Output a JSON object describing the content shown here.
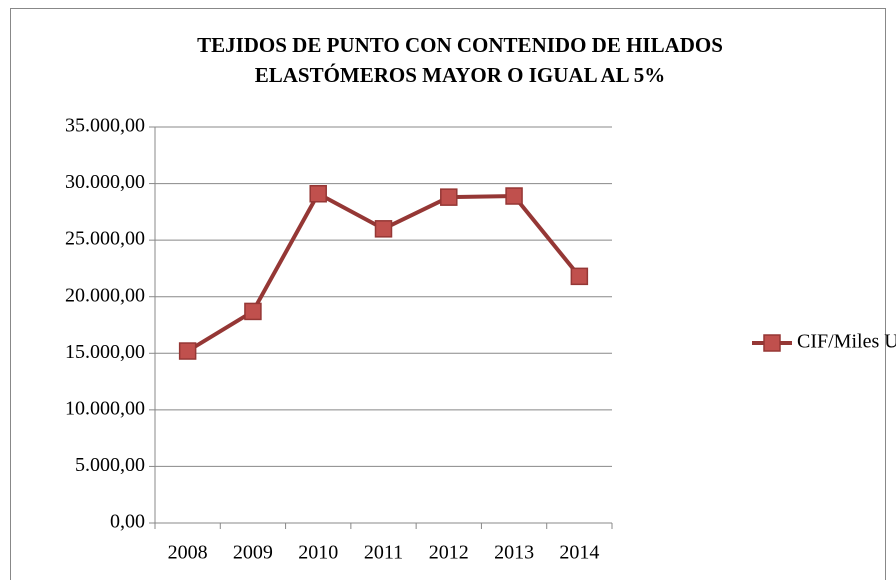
{
  "chart_data": {
    "type": "line",
    "title": [
      "TEJIDOS DE PUNTO CON CONTENIDO DE HILADOS",
      "ELASTÓMEROS MAYOR O IGUAL AL 5%"
    ],
    "categories": [
      "2008",
      "2009",
      "2010",
      "2011",
      "2012",
      "2013",
      "2014"
    ],
    "series": [
      {
        "name": "CIF/Miles USD",
        "color": "#c0504d",
        "values": [
          15200,
          18700,
          29100,
          26000,
          28800,
          28900,
          21800
        ]
      }
    ],
    "ylim": [
      0,
      35000
    ],
    "yticks": [
      {
        "value": 0,
        "label": "0,00"
      },
      {
        "value": 5000,
        "label": "5.000,00"
      },
      {
        "value": 10000,
        "label": "10.000,00"
      },
      {
        "value": 15000,
        "label": "15.000,00"
      },
      {
        "value": 20000,
        "label": "20.000,00"
      },
      {
        "value": 25000,
        "label": "25.000,00"
      },
      {
        "value": 30000,
        "label": "30.000,00"
      },
      {
        "value": 35000,
        "label": "35.000,00"
      }
    ],
    "grid": true,
    "legend": "right"
  }
}
